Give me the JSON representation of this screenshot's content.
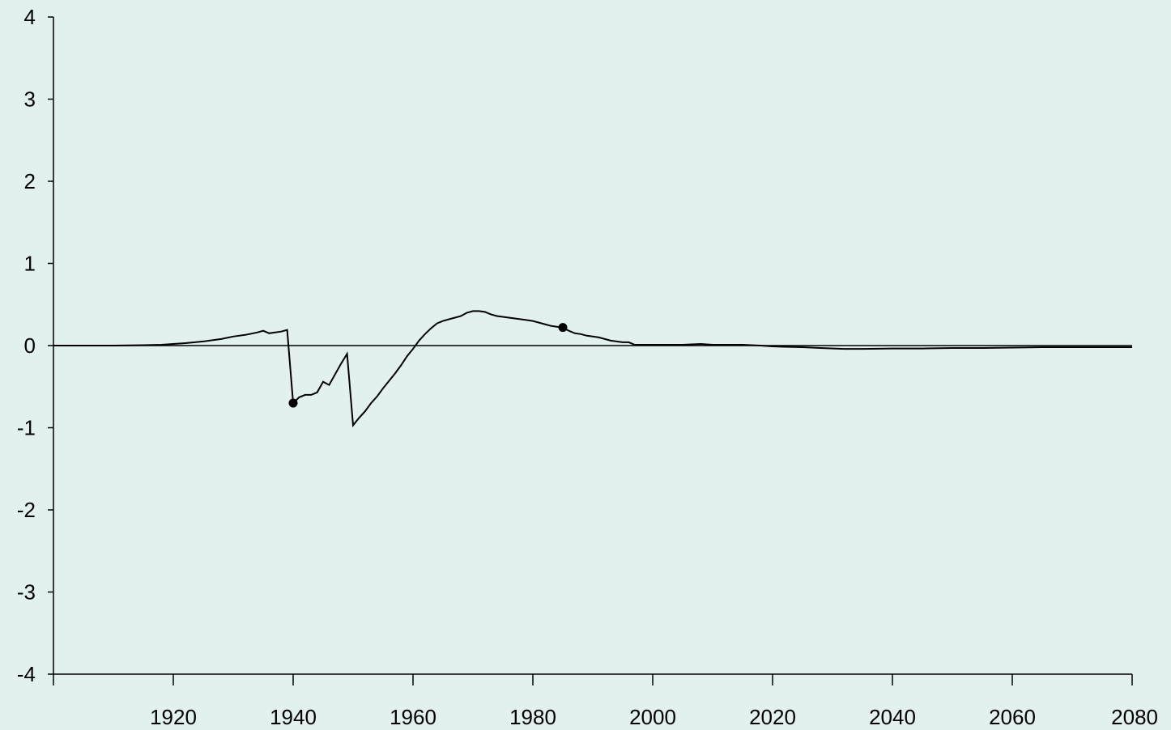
{
  "chart_data": {
    "type": "line",
    "title": "",
    "xlabel": "",
    "ylabel": "",
    "xlim": [
      1900,
      2080
    ],
    "ylim": [
      -4,
      4
    ],
    "grid": false,
    "legend": "none",
    "x_ticks": [
      1920,
      1940,
      1960,
      1980,
      2000,
      2020,
      2040,
      2060,
      2080
    ],
    "x_tick_labels": [
      "1920",
      "1940",
      "1960",
      "1980",
      "2000",
      "2020",
      "2040",
      "2060",
      "2080"
    ],
    "y_ticks": [
      4,
      3,
      2,
      1,
      0,
      -1,
      -2,
      -3,
      -4
    ],
    "y_tick_labels": [
      "4",
      "3",
      "2",
      "1",
      "0",
      "-1",
      "-2",
      "-3",
      "-4"
    ],
    "zero_line": true,
    "line_color": "#000000",
    "background_color": "#e2f0ef",
    "series": [
      {
        "x": [
          1900,
          1910,
          1915,
          1918,
          1920,
          1922,
          1925,
          1928,
          1930,
          1932,
          1934,
          1935,
          1936,
          1938,
          1939,
          1940,
          1941,
          1942,
          1943,
          1944,
          1945,
          1946,
          1947,
          1948,
          1949,
          1950,
          1951,
          1952,
          1953,
          1954,
          1955,
          1956,
          1957,
          1958,
          1959,
          1960,
          1961,
          1962,
          1963,
          1964,
          1965,
          1966,
          1967,
          1968,
          1969,
          1970,
          1971,
          1972,
          1973,
          1974,
          1975,
          1976,
          1977,
          1978,
          1979,
          1980,
          1981,
          1982,
          1983,
          1984,
          1985,
          1986,
          1987,
          1988,
          1989,
          1990,
          1991,
          1992,
          1993,
          1994,
          1995,
          1996,
          1997,
          1998,
          2000,
          2005,
          2008,
          2010,
          2015,
          2018,
          2020,
          2022,
          2025,
          2028,
          2032,
          2035,
          2040,
          2045,
          2050,
          2055,
          2060,
          2065,
          2070,
          2075,
          2080
        ],
        "y": [
          0,
          0,
          0.005,
          0.01,
          0.02,
          0.03,
          0.05,
          0.08,
          0.11,
          0.13,
          0.16,
          0.18,
          0.15,
          0.17,
          0.19,
          -0.7,
          -0.63,
          -0.6,
          -0.6,
          -0.57,
          -0.44,
          -0.48,
          -0.35,
          -0.22,
          -0.1,
          -0.97,
          -0.88,
          -0.8,
          -0.7,
          -0.62,
          -0.52,
          -0.43,
          -0.34,
          -0.24,
          -0.13,
          -0.04,
          0.06,
          0.14,
          0.21,
          0.27,
          0.3,
          0.32,
          0.34,
          0.36,
          0.4,
          0.42,
          0.42,
          0.41,
          0.38,
          0.36,
          0.35,
          0.34,
          0.33,
          0.32,
          0.31,
          0.3,
          0.28,
          0.26,
          0.24,
          0.23,
          0.22,
          0.18,
          0.15,
          0.14,
          0.12,
          0.11,
          0.1,
          0.08,
          0.06,
          0.05,
          0.04,
          0.04,
          0.01,
          0.01,
          0.01,
          0.01,
          0.02,
          0.01,
          0.01,
          0.0,
          -0.01,
          -0.015,
          -0.02,
          -0.03,
          -0.04,
          -0.04,
          -0.035,
          -0.035,
          -0.03,
          -0.03,
          -0.025,
          -0.02,
          -0.02,
          -0.02,
          -0.02
        ]
      }
    ],
    "markers": [
      {
        "x": 1940,
        "y": -0.7
      },
      {
        "x": 1985,
        "y": 0.22
      }
    ]
  }
}
